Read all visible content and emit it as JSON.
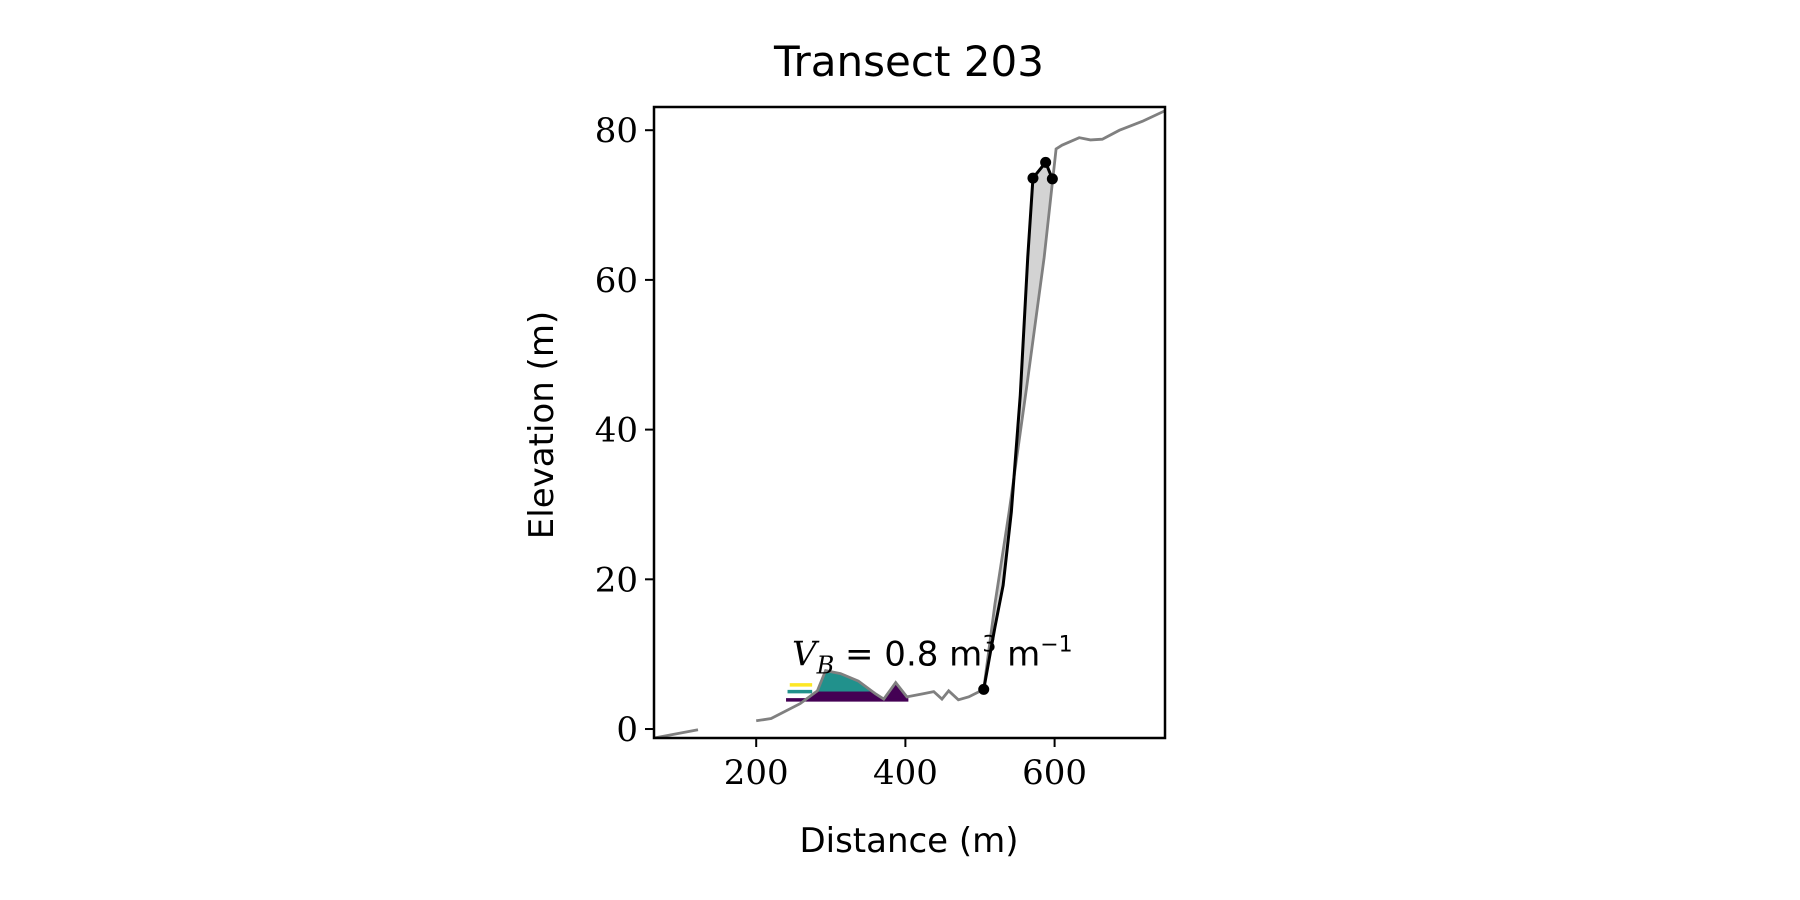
{
  "chart_data": {
    "type": "line",
    "title": "Transect 203",
    "xlabel": "Distance (m)",
    "ylabel": "Elevation (m)",
    "xlim": [
      63,
      748
    ],
    "ylim": [
      -1.2,
      83.1
    ],
    "xticks": [
      200,
      400,
      600
    ],
    "yticks": [
      0,
      20,
      40,
      60,
      80
    ],
    "series": [
      {
        "color": "#808080",
        "x": [
          63,
          122,
          null,
          200,
          220,
          259,
          282,
          293,
          313,
          337,
          360,
          371,
          387,
          402,
          423,
          438,
          449,
          458,
          471,
          485,
          505,
          520,
          539,
          563,
          586,
          602,
          610,
          633,
          648,
          664,
          687,
          718,
          748
        ],
        "values": [
          -1.2,
          -0.1,
          null,
          1.1,
          1.4,
          3.4,
          5.1,
          7.8,
          7.4,
          6.4,
          4.7,
          4.0,
          6.2,
          4.3,
          4.7,
          5.0,
          4.0,
          5.1,
          3.9,
          4.3,
          5.3,
          16.7,
          29,
          46,
          63,
          77.5,
          78,
          79,
          78.7,
          78.8,
          80,
          81.2,
          82.6
        ]
      },
      {
        "color": "#000000",
        "x": [
          505,
          520,
          531,
          542,
          554,
          564,
          571,
          588,
          597
        ],
        "values": [
          5.3,
          13.6,
          19.2,
          29,
          44.6,
          63,
          73.6,
          75.7,
          73.5
        ]
      }
    ],
    "points": {
      "color": "#000000",
      "x": [
        505,
        571,
        588,
        597
      ],
      "values": [
        5.3,
        73.6,
        75.7,
        73.5
      ]
    },
    "fill_color": "#d3d3d3",
    "fills": [
      {
        "color": "#440154",
        "base": 3.9,
        "x": [
          240,
          402
        ]
      },
      {
        "color": "#21918c",
        "base": 5.0,
        "x": [
          259,
          360
        ]
      }
    ],
    "levels": [
      {
        "color": "#440154",
        "value": 3.9,
        "x": [
          240,
          404
        ]
      },
      {
        "color": "#21918c",
        "value": 5.0,
        "x": [
          242,
          275
        ]
      },
      {
        "color": "#fde725",
        "value": 5.9,
        "x": [
          245,
          275
        ]
      }
    ],
    "annotation": {
      "x": 248,
      "y": 8.5,
      "parts": [
        "V",
        "B",
        " = 0.8 m",
        "3",
        " m",
        "−1"
      ]
    }
  }
}
